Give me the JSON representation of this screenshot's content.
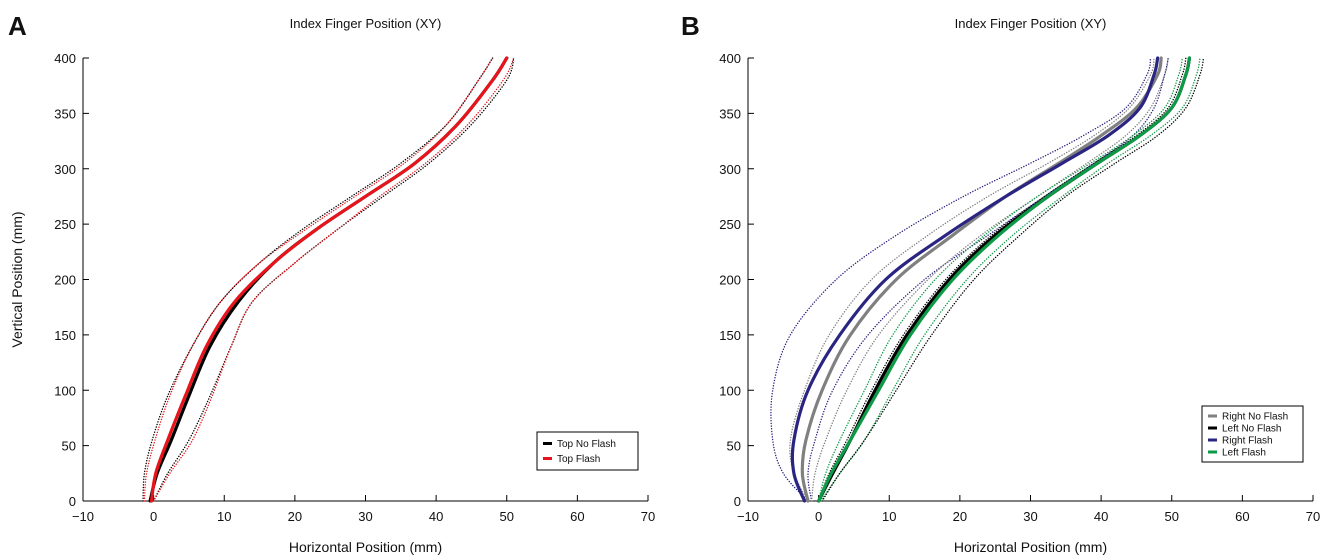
{
  "chart_data": [
    {
      "type": "line",
      "panel_label": "A",
      "title": "Index Finger Position (XY)",
      "xlabel": "Horizontal Position (mm)",
      "ylabel": "Vertical Position (mm)",
      "xlim": [
        -10,
        70
      ],
      "ylim": [
        0,
        400
      ],
      "xticks": [
        -10,
        0,
        10,
        20,
        30,
        40,
        50,
        60,
        70
      ],
      "yticks": [
        0,
        50,
        100,
        150,
        200,
        250,
        300,
        350,
        400
      ],
      "tick_labels_x": [
        "−10",
        "0",
        "10",
        "20",
        "30",
        "40",
        "50",
        "60",
        "70"
      ],
      "tick_labels_y": [
        "0",
        "50",
        "100",
        "150",
        "200",
        "250",
        "300",
        "350",
        "400"
      ],
      "grid": false,
      "legend_position": "lower-right",
      "legend": [
        "Top No Flash",
        "Top Flash"
      ],
      "series": [
        {
          "name": "Top No Flash",
          "color": "#000000",
          "style": "solid",
          "x": [
            -0.5,
            0.5,
            2.5,
            5,
            8,
            12,
            17,
            23,
            30,
            37,
            43,
            48,
            50
          ],
          "y": [
            0,
            25,
            55,
            95,
            140,
            180,
            215,
            245,
            275,
            305,
            340,
            380,
            400
          ]
        },
        {
          "name": "Top Flash",
          "color": "#e8141c",
          "style": "solid",
          "x": [
            -0.3,
            0.3,
            2,
            4.5,
            7.5,
            11.5,
            17,
            23,
            30,
            37,
            43,
            48,
            50
          ],
          "y": [
            0,
            25,
            55,
            95,
            140,
            180,
            215,
            245,
            275,
            305,
            340,
            380,
            400
          ]
        },
        {
          "name": "",
          "color": "#000000",
          "style": "dotted",
          "x": [
            -1.5,
            -1.3,
            -0.2,
            2,
            5.5,
            9.5,
            15,
            21,
            28,
            35,
            41.5,
            46,
            48
          ],
          "y": [
            0,
            25,
            55,
            95,
            140,
            180,
            215,
            245,
            275,
            305,
            340,
            380,
            400
          ]
        },
        {
          "name": "",
          "color": "#000000",
          "style": "dotted",
          "x": [
            0,
            2,
            5,
            8,
            11,
            14,
            20,
            26,
            32.5,
            39,
            45,
            50,
            51
          ],
          "y": [
            0,
            25,
            55,
            95,
            140,
            180,
            215,
            245,
            275,
            305,
            340,
            380,
            400
          ]
        },
        {
          "name": "",
          "color": "#e8141c",
          "style": "dotted",
          "x": [
            -1.3,
            -1,
            0.2,
            2.3,
            5.5,
            9.5,
            15,
            21.5,
            28.5,
            35.5,
            41.5,
            46,
            48
          ],
          "y": [
            0,
            25,
            55,
            95,
            140,
            180,
            215,
            245,
            275,
            305,
            340,
            380,
            400
          ]
        },
        {
          "name": "",
          "color": "#e8141c",
          "style": "dotted",
          "x": [
            0,
            2.3,
            5.5,
            8.3,
            11,
            14,
            20,
            26,
            32,
            38.5,
            44.5,
            49.5,
            51
          ],
          "y": [
            0,
            25,
            55,
            95,
            140,
            180,
            215,
            245,
            275,
            305,
            340,
            380,
            400
          ]
        }
      ]
    },
    {
      "type": "line",
      "panel_label": "B",
      "title": "Index Finger Position (XY)",
      "xlabel": "Horizontal Position (mm)",
      "ylabel": "",
      "xlim": [
        -10,
        70
      ],
      "ylim": [
        0,
        400
      ],
      "xticks": [
        -10,
        0,
        10,
        20,
        30,
        40,
        50,
        60,
        70
      ],
      "yticks": [
        0,
        50,
        100,
        150,
        200,
        250,
        300,
        350,
        400
      ],
      "tick_labels_x": [
        "−10",
        "0",
        "10",
        "20",
        "30",
        "40",
        "50",
        "60",
        "70"
      ],
      "tick_labels_y": [
        "0",
        "50",
        "100",
        "150",
        "200",
        "250",
        "300",
        "350",
        "400"
      ],
      "grid": false,
      "legend_position": "lower-right",
      "legend": [
        "Right No Flash",
        "Left No Flash",
        "Right Flash",
        "Left Flash"
      ],
      "series": [
        {
          "name": "Right No Flash",
          "color": "#808080",
          "style": "solid",
          "x": [
            -1.5,
            -2.3,
            -1.8,
            0.5,
            4.5,
            11,
            19,
            26.5,
            34,
            40,
            45,
            48,
            48.5
          ],
          "y": [
            0,
            25,
            55,
            100,
            150,
            200,
            240,
            275,
            305,
            330,
            355,
            385,
            400
          ]
        },
        {
          "name": "Left No Flash",
          "color": "#000000",
          "style": "solid",
          "x": [
            0,
            2,
            4.5,
            8,
            12.5,
            18.5,
            25,
            32.5,
            39.5,
            45.5,
            50,
            52,
            52.5
          ],
          "y": [
            0,
            25,
            55,
            100,
            150,
            200,
            240,
            275,
            305,
            330,
            355,
            385,
            400
          ]
        },
        {
          "name": "Right Flash",
          "color": "#2b2582",
          "style": "solid",
          "x": [
            -2,
            -3.5,
            -3.5,
            -1.5,
            3,
            9.5,
            18,
            26.5,
            34.5,
            41,
            45.5,
            47.5,
            48
          ],
          "y": [
            0,
            25,
            55,
            100,
            150,
            200,
            240,
            275,
            305,
            330,
            355,
            385,
            400
          ]
        },
        {
          "name": "Left Flash",
          "color": "#0d9a47",
          "style": "solid",
          "x": [
            0,
            1.8,
            4.5,
            8.5,
            13,
            19,
            25.5,
            32.5,
            39.5,
            45.5,
            50,
            52,
            52.5
          ],
          "y": [
            0,
            25,
            55,
            100,
            150,
            200,
            240,
            275,
            305,
            330,
            355,
            385,
            400
          ]
        },
        {
          "name": "",
          "color": "#2b2582",
          "style": "dotted",
          "x": [
            -1.5,
            -5,
            -6.5,
            -6.5,
            -4,
            2.5,
            11,
            20.5,
            30,
            37.5,
            43.5,
            46.5,
            47
          ],
          "y": [
            0,
            25,
            55,
            100,
            150,
            200,
            240,
            275,
            305,
            330,
            355,
            385,
            400
          ]
        },
        {
          "name": "",
          "color": "#2b2582",
          "style": "dotted",
          "x": [
            -1,
            -1.5,
            -0.5,
            2,
            7,
            15,
            24,
            32,
            39,
            44.5,
            47.5,
            49,
            49.5
          ],
          "y": [
            0,
            25,
            55,
            100,
            150,
            200,
            240,
            275,
            305,
            330,
            355,
            385,
            400
          ]
        },
        {
          "name": "",
          "color": "#808080",
          "style": "dotted",
          "x": [
            -1.5,
            -3.5,
            -4,
            -2,
            1.5,
            7.5,
            15.5,
            24,
            32.5,
            39,
            44,
            47,
            47.5
          ],
          "y": [
            0,
            25,
            55,
            100,
            150,
            200,
            240,
            275,
            305,
            330,
            355,
            385,
            400
          ]
        },
        {
          "name": "",
          "color": "#808080",
          "style": "dotted",
          "x": [
            -1,
            -0.5,
            1,
            4,
            8.5,
            15.5,
            23,
            31,
            38,
            43.5,
            47,
            49,
            49.5
          ],
          "y": [
            0,
            25,
            55,
            100,
            150,
            200,
            240,
            275,
            305,
            330,
            355,
            385,
            400
          ]
        },
        {
          "name": "",
          "color": "#0d9a47",
          "style": "dotted",
          "x": [
            0,
            1,
            3,
            6.5,
            10.5,
            16.5,
            23.5,
            31,
            38.5,
            44.5,
            49,
            51,
            51.5
          ],
          "y": [
            0,
            25,
            55,
            100,
            150,
            200,
            240,
            275,
            305,
            330,
            355,
            385,
            400
          ]
        },
        {
          "name": "",
          "color": "#0d9a47",
          "style": "dotted",
          "x": [
            0.3,
            3,
            6.5,
            10.5,
            15,
            21,
            27.5,
            34.5,
            41,
            47,
            51.5,
            53.5,
            54
          ],
          "y": [
            0,
            25,
            55,
            100,
            150,
            200,
            240,
            275,
            305,
            330,
            355,
            385,
            400
          ]
        },
        {
          "name": "",
          "color": "#000000",
          "style": "dotted",
          "x": [
            0,
            1.5,
            4,
            7.5,
            12,
            18,
            24.5,
            32,
            39,
            45,
            49.5,
            51.5,
            52
          ],
          "y": [
            0,
            25,
            55,
            100,
            150,
            200,
            240,
            275,
            305,
            330,
            355,
            385,
            400
          ]
        },
        {
          "name": "",
          "color": "#000000",
          "style": "dotted",
          "x": [
            0.5,
            3,
            6.5,
            11,
            16,
            22,
            28.5,
            35,
            42,
            48,
            52,
            54,
            54.5
          ],
          "y": [
            0,
            25,
            55,
            100,
            150,
            200,
            240,
            275,
            305,
            330,
            355,
            385,
            400
          ]
        }
      ]
    }
  ]
}
